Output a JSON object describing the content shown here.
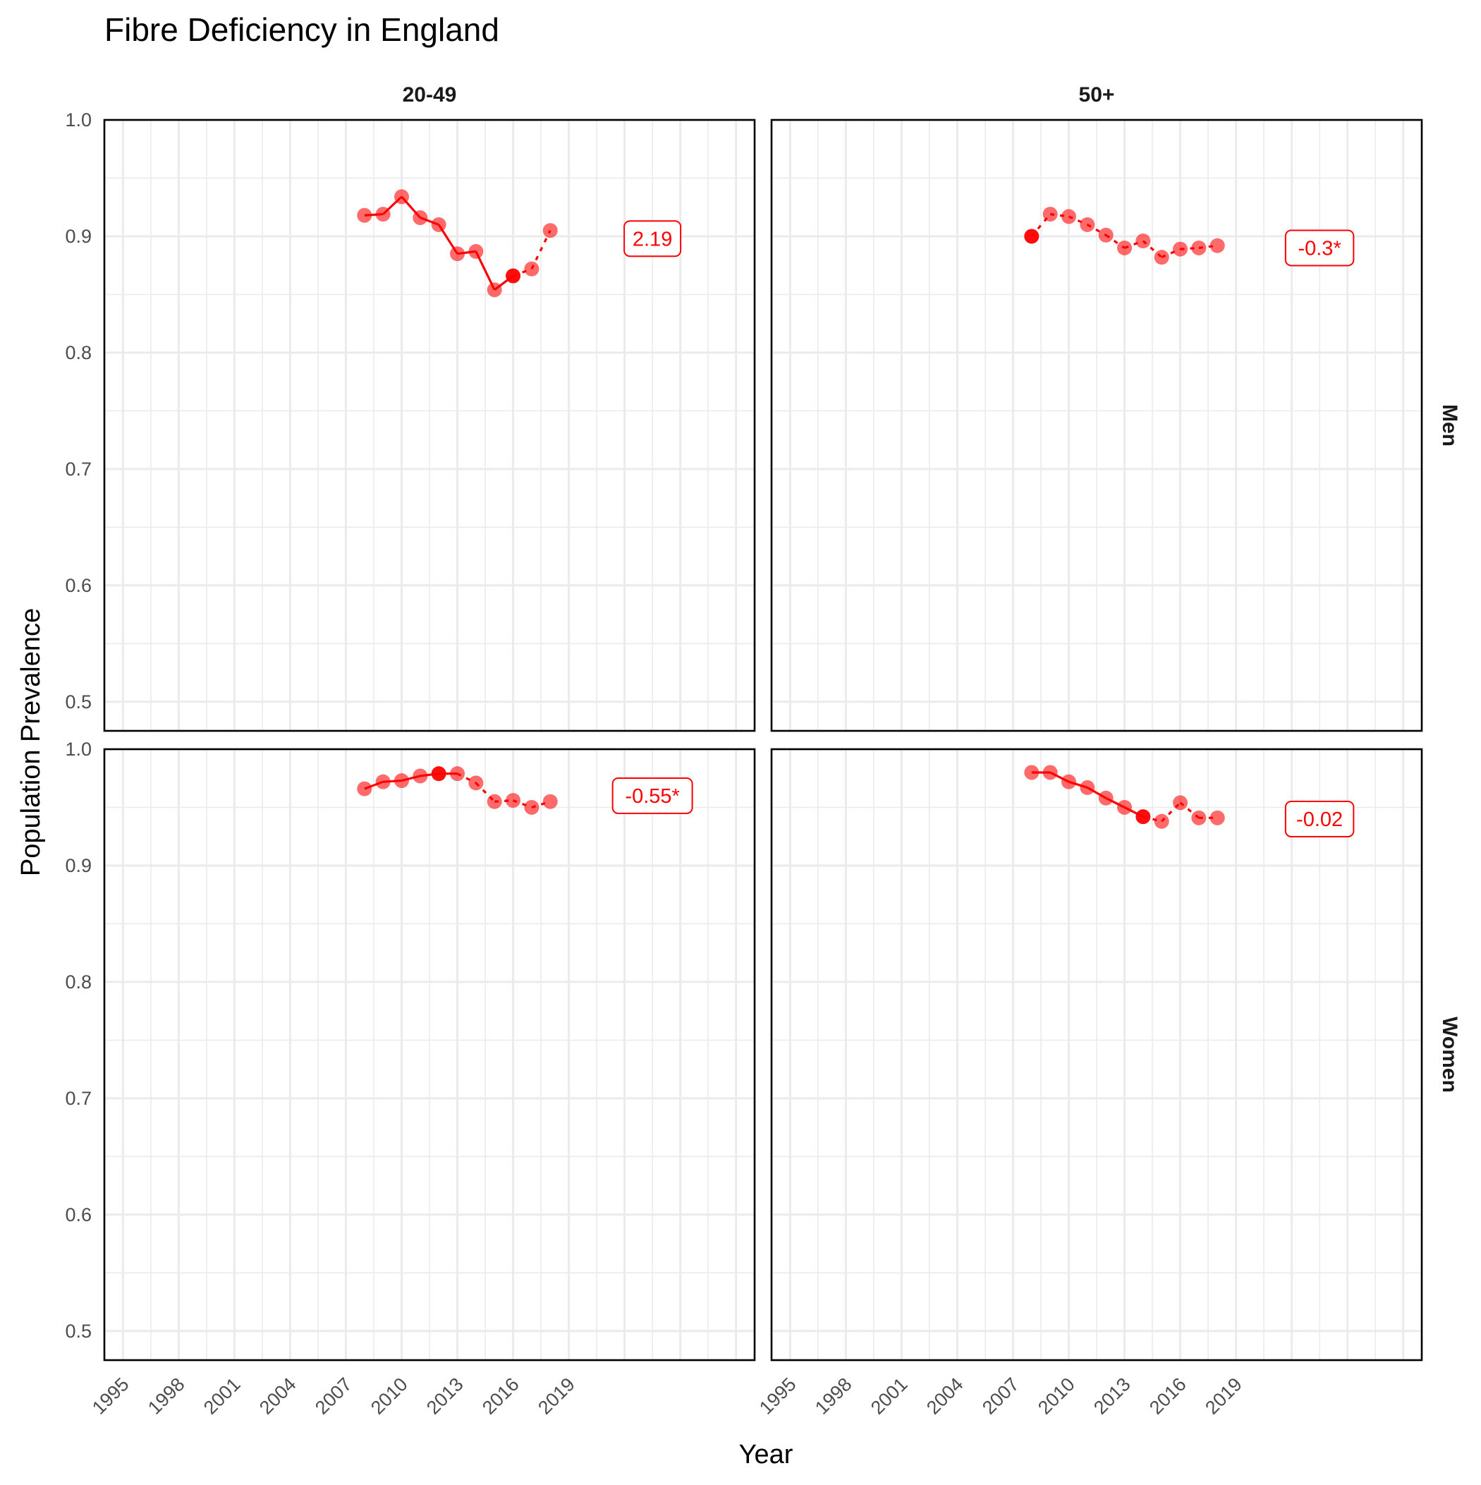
{
  "title": "Fibre Deficiency in England",
  "xlabel": "Year",
  "ylabel": "Population Prevalence",
  "colors": {
    "series": "#ff0000",
    "panel_border": "#000000",
    "grid": "#ebebeb"
  },
  "chart_data": {
    "type": "line",
    "title": "Fibre Deficiency in England",
    "xlabel": "Year",
    "ylabel": "Population Prevalence",
    "facet_columns": [
      "20-49",
      "50+"
    ],
    "facet_rows": [
      "Men",
      "Women"
    ],
    "xlim": [
      1994,
      2029
    ],
    "ylim": [
      0.475,
      1.0
    ],
    "xticks": [
      "1995",
      "1998",
      "2001",
      "2004",
      "2007",
      "2010",
      "2013",
      "2016",
      "2019"
    ],
    "yticks": [
      "0.5",
      "0.6",
      "0.7",
      "0.8",
      "0.9",
      "1.0"
    ],
    "grid": true,
    "panels": [
      {
        "row": "Men",
        "col": "20-49",
        "x": [
          2008,
          2009,
          2010,
          2011,
          2012,
          2013,
          2014,
          2015,
          2016,
          2017,
          2018
        ],
        "y": [
          0.918,
          0.919,
          0.934,
          0.916,
          0.91,
          0.885,
          0.887,
          0.854,
          0.866,
          0.872,
          0.905
        ],
        "highlight": [
          2016
        ],
        "solid_until": 2016,
        "label": "2.19",
        "label_y": 0.898
      },
      {
        "row": "Men",
        "col": "50+",
        "x": [
          2008,
          2009,
          2010,
          2011,
          2012,
          2013,
          2014,
          2015,
          2016,
          2017,
          2018
        ],
        "y": [
          0.9,
          0.919,
          0.917,
          0.91,
          0.901,
          0.89,
          0.896,
          0.882,
          0.889,
          0.89,
          0.892
        ],
        "highlight": [
          2008
        ],
        "solid_until": 2008,
        "label": "-0.3*",
        "label_y": 0.89
      },
      {
        "row": "Women",
        "col": "20-49",
        "x": [
          2008,
          2009,
          2010,
          2011,
          2012,
          2013,
          2014,
          2015,
          2016,
          2017,
          2018
        ],
        "y": [
          0.966,
          0.972,
          0.973,
          0.977,
          0.979,
          0.979,
          0.971,
          0.955,
          0.956,
          0.95,
          0.955
        ],
        "highlight": [
          2012
        ],
        "solid_until": 2013,
        "label": "-0.55*",
        "label_y": 0.96
      },
      {
        "row": "Women",
        "col": "50+",
        "x": [
          2008,
          2009,
          2010,
          2011,
          2012,
          2013,
          2014,
          2015,
          2016,
          2017,
          2018
        ],
        "y": [
          0.98,
          0.98,
          0.972,
          0.967,
          0.958,
          0.95,
          0.942,
          0.938,
          0.954,
          0.941,
          0.941
        ],
        "highlight": [
          2014
        ],
        "solid_until": 2014,
        "label": "-0.02",
        "label_y": 0.94
      }
    ]
  }
}
